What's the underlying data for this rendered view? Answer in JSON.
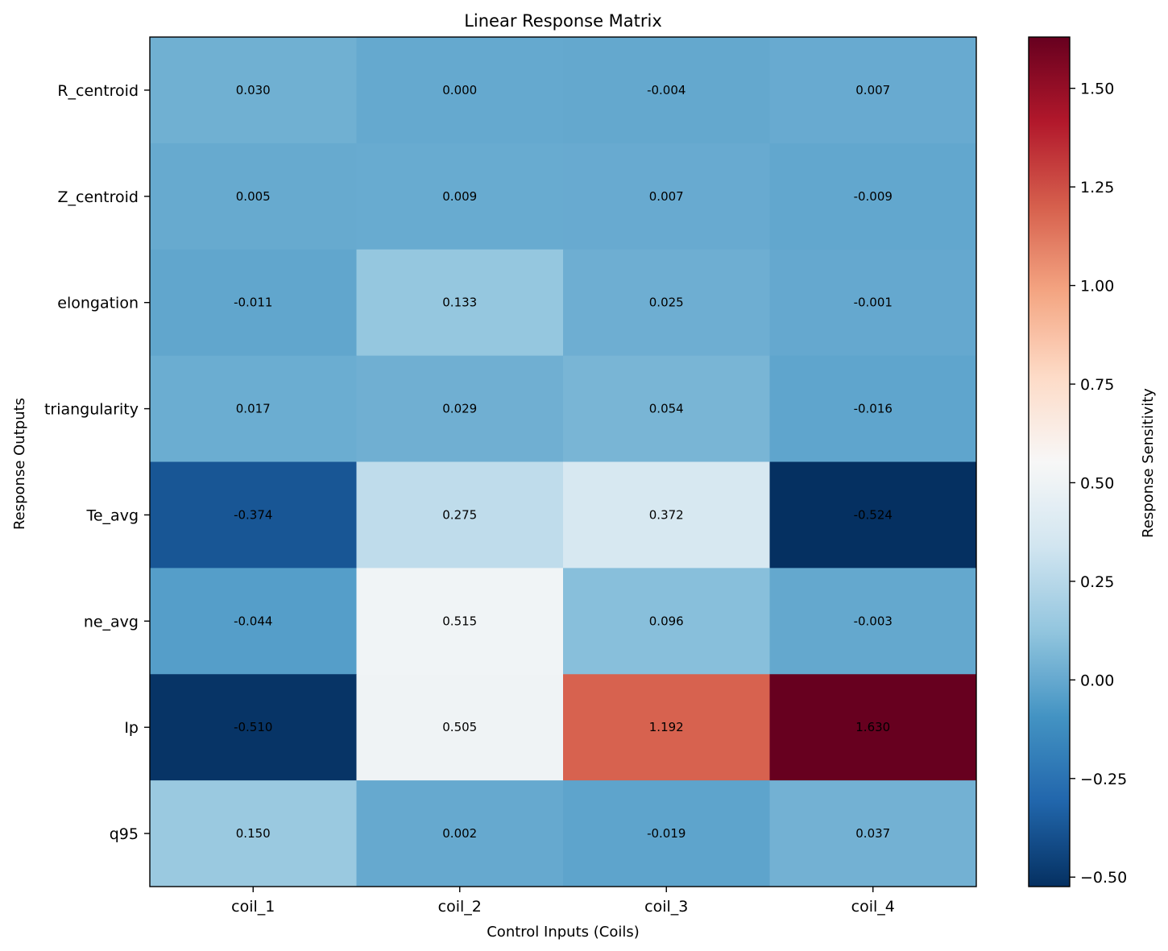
{
  "chart_data": {
    "type": "heatmap",
    "title": "Linear Response Matrix",
    "xlabel": "Control Inputs (Coils)",
    "ylabel": "Response Outputs",
    "x_categories": [
      "coil_1",
      "coil_2",
      "coil_3",
      "coil_4"
    ],
    "y_categories": [
      "R_centroid",
      "Z_centroid",
      "elongation",
      "triangularity",
      "Te_avg",
      "ne_avg",
      "Ip",
      "q95"
    ],
    "values": [
      [
        0.03,
        0.0,
        -0.004,
        0.007
      ],
      [
        0.005,
        0.009,
        0.007,
        -0.009
      ],
      [
        -0.011,
        0.133,
        0.025,
        -0.001
      ],
      [
        0.017,
        0.029,
        0.054,
        -0.016
      ],
      [
        -0.374,
        0.275,
        0.372,
        -0.524
      ],
      [
        -0.044,
        0.515,
        0.096,
        -0.003
      ],
      [
        -0.51,
        0.505,
        1.192,
        1.63
      ],
      [
        0.15,
        0.002,
        -0.019,
        0.037
      ]
    ],
    "value_labels": [
      [
        "0.030",
        "0.000",
        "-0.004",
        "0.007"
      ],
      [
        "0.005",
        "0.009",
        "0.007",
        "-0.009"
      ],
      [
        "-0.011",
        "0.133",
        "0.025",
        "-0.001"
      ],
      [
        "0.017",
        "0.029",
        "0.054",
        "-0.016"
      ],
      [
        "-0.374",
        "0.275",
        "0.372",
        "-0.524"
      ],
      [
        "-0.044",
        "0.515",
        "0.096",
        "-0.003"
      ],
      [
        "-0.510",
        "0.505",
        "1.192",
        "1.630"
      ],
      [
        "0.150",
        "0.002",
        "-0.019",
        "0.037"
      ]
    ],
    "colormap": "RdBu_r",
    "color_range": [
      -0.524,
      1.63
    ],
    "colorbar": {
      "label": "Response Sensitivity",
      "ticks": [
        -0.5,
        -0.25,
        0.0,
        0.25,
        0.5,
        0.75,
        1.0,
        1.25,
        1.5
      ],
      "tick_labels": [
        "−0.50",
        "−0.25",
        "0.00",
        "0.25",
        "0.50",
        "0.75",
        "1.00",
        "1.25",
        "1.50"
      ]
    }
  }
}
